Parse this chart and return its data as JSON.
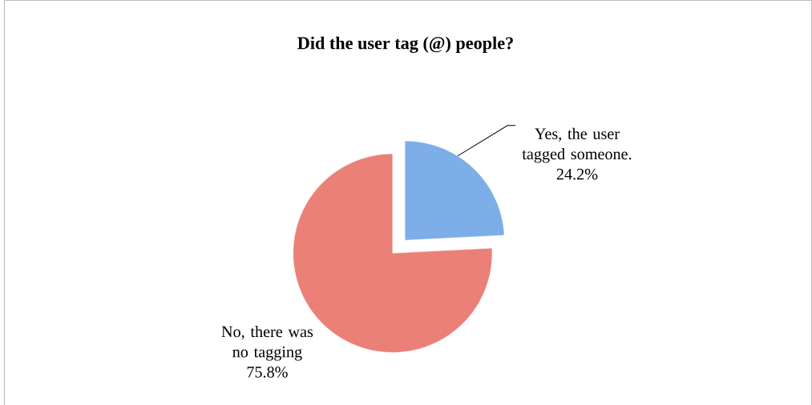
{
  "chart_data": {
    "type": "pie",
    "title": "Did the user tag (@) people?",
    "categories": [
      "Yes, the user tagged someone.",
      "No, there was no tagging"
    ],
    "values": [
      24.2,
      75.8
    ],
    "colors": [
      "#7eaee8",
      "#ea8078"
    ],
    "value_labels": [
      "24.2%",
      "75.8%"
    ]
  }
}
